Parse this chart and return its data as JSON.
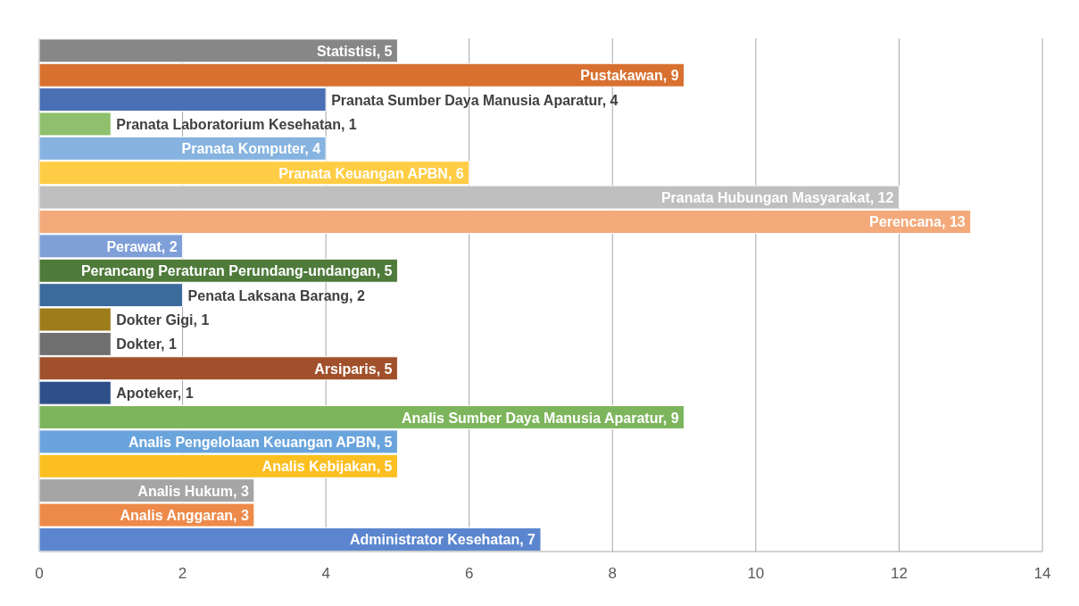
{
  "chart_data": {
    "type": "bar",
    "orientation": "horizontal",
    "categories": [
      null,
      null,
      null,
      null,
      null,
      null,
      null,
      null,
      null,
      null,
      null,
      null,
      null,
      null,
      null,
      null,
      null,
      null,
      null,
      null,
      null
    ],
    "values": [
      5,
      9,
      4,
      1,
      4,
      6,
      12,
      13,
      2,
      5,
      2,
      1,
      1,
      5,
      1,
      9,
      5,
      5,
      3,
      3,
      7
    ],
    "value_labels": [
      "Statistisi, 5",
      "Pustakawan, 9",
      "Pranata Sumber Daya Manusia Aparatur, 4",
      "Pranata Laboratorium Kesehatan, 1",
      "Pranata Komputer, 4",
      "Pranata Keuangan APBN, 6",
      "Pranata Hubungan Masyarakat, 12",
      "Perencana, 13",
      "Perawat, 2",
      "Perancang Peraturan Perundang-undangan, 5",
      "Penata Laksana Barang, 2",
      "Dokter Gigi, 1",
      "Dokter, 1",
      "Arsiparis, 5",
      "Apoteker, 1",
      "Analis Sumber Daya Manusia Aparatur, 9",
      "Analis Pengelolaan Keuangan APBN, 5",
      "Analis Kebijakan, 5",
      "Analis Hukum, 3",
      "Analis Anggaran, 3",
      "Administrator Kesehatan, 7"
    ],
    "colors": [
      "#878787",
      "#d8702f",
      "#4a6fb5",
      "#8fc06d",
      "#86b3e0",
      "#ffcd45",
      "#bfbfbf",
      "#f4a97a",
      "#7f9fd8",
      "#4e7a3a",
      "#3b6a9c",
      "#9c7d1a",
      "#6f6f6f",
      "#a0502a",
      "#2f4f8a",
      "#7db55c",
      "#6aa4dc",
      "#fbbf22",
      "#a5a5a5",
      "#ed8a4a",
      "#5b85cf"
    ],
    "xlim": [
      0,
      14
    ],
    "xticks": [
      0,
      2,
      4,
      6,
      8,
      10,
      12,
      14
    ],
    "grid": "x",
    "tick_labels": "x"
  }
}
